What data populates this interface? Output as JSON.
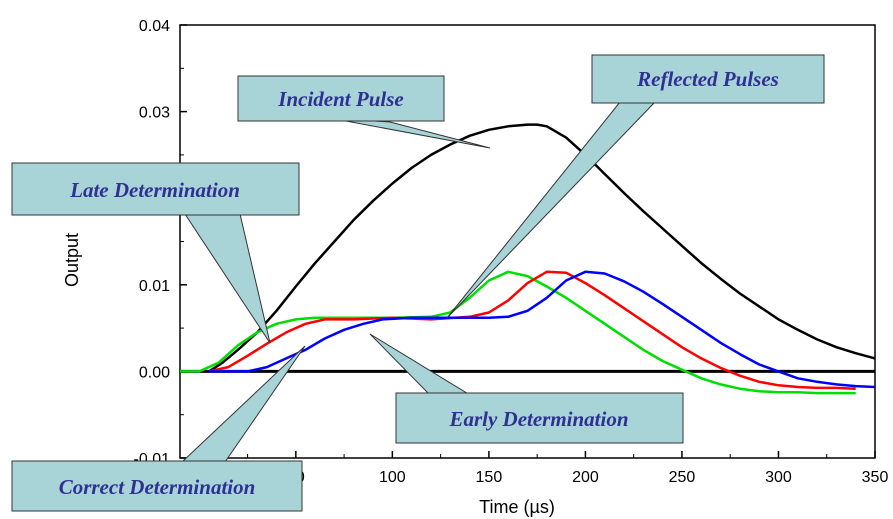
{
  "chart_data": {
    "type": "line",
    "xlabel": "Time (µs)",
    "ylabel": "Output",
    "xlim": [
      -10,
      350
    ],
    "ylim": [
      -0.01,
      0.04
    ],
    "x_tick_labels": [
      "50",
      "100",
      "150",
      "200",
      "250",
      "300",
      "350"
    ],
    "y_tick_labels": [
      "-0.01",
      "0.00",
      "0.01",
      "0.03",
      "0.04"
    ],
    "series": [
      {
        "color": "#000000",
        "points": [
          [
            5,
            0.0
          ],
          [
            12,
            0.001
          ],
          [
            20,
            0.0025
          ],
          [
            30,
            0.0045
          ],
          [
            40,
            0.007
          ],
          [
            50,
            0.0098
          ],
          [
            60,
            0.0125
          ],
          [
            70,
            0.015
          ],
          [
            80,
            0.0175
          ],
          [
            90,
            0.0197
          ],
          [
            100,
            0.0217
          ],
          [
            110,
            0.0235
          ],
          [
            120,
            0.025
          ],
          [
            130,
            0.0262
          ],
          [
            140,
            0.0272
          ],
          [
            150,
            0.0279
          ],
          [
            160,
            0.0283
          ],
          [
            170,
            0.0285
          ],
          [
            175,
            0.0285
          ],
          [
            180,
            0.0283
          ],
          [
            190,
            0.027
          ],
          [
            200,
            0.025
          ],
          [
            210,
            0.0228
          ],
          [
            220,
            0.0206
          ],
          [
            230,
            0.0185
          ],
          [
            240,
            0.0165
          ],
          [
            250,
            0.0145
          ],
          [
            260,
            0.0125
          ],
          [
            270,
            0.0107
          ],
          [
            280,
            0.009
          ],
          [
            290,
            0.0075
          ],
          [
            300,
            0.006
          ],
          [
            310,
            0.0048
          ],
          [
            320,
            0.0037
          ],
          [
            330,
            0.0028
          ],
          [
            340,
            0.0021
          ],
          [
            350,
            0.0015
          ]
        ]
      },
      {
        "color": "#00dd00",
        "points": [
          [
            -10,
            0.0
          ],
          [
            0,
            0.0
          ],
          [
            10,
            0.001
          ],
          [
            20,
            0.003
          ],
          [
            30,
            0.0045
          ],
          [
            40,
            0.0055
          ],
          [
            50,
            0.006
          ],
          [
            60,
            0.0062
          ],
          [
            80,
            0.0062
          ],
          [
            100,
            0.0062
          ],
          [
            120,
            0.0063
          ],
          [
            130,
            0.0068
          ],
          [
            140,
            0.0085
          ],
          [
            150,
            0.0105
          ],
          [
            160,
            0.0115
          ],
          [
            170,
            0.011
          ],
          [
            180,
            0.0098
          ],
          [
            190,
            0.0085
          ],
          [
            200,
            0.007
          ],
          [
            210,
            0.0055
          ],
          [
            220,
            0.004
          ],
          [
            230,
            0.0025
          ],
          [
            240,
            0.0012
          ],
          [
            250,
            0.0002
          ],
          [
            260,
            -0.0008
          ],
          [
            270,
            -0.0015
          ],
          [
            280,
            -0.002
          ],
          [
            290,
            -0.0023
          ],
          [
            300,
            -0.0024
          ],
          [
            310,
            -0.0024
          ],
          [
            320,
            -0.0025
          ],
          [
            330,
            -0.0025
          ],
          [
            340,
            -0.0025
          ]
        ]
      },
      {
        "color": "#ff0000",
        "points": [
          [
            5,
            0.0
          ],
          [
            15,
            0.0005
          ],
          [
            25,
            0.0018
          ],
          [
            35,
            0.0032
          ],
          [
            45,
            0.0045
          ],
          [
            55,
            0.0055
          ],
          [
            65,
            0.006
          ],
          [
            80,
            0.006
          ],
          [
            100,
            0.0062
          ],
          [
            120,
            0.006
          ],
          [
            140,
            0.0063
          ],
          [
            150,
            0.0068
          ],
          [
            160,
            0.0082
          ],
          [
            170,
            0.0102
          ],
          [
            180,
            0.0115
          ],
          [
            190,
            0.0114
          ],
          [
            200,
            0.0102
          ],
          [
            210,
            0.0088
          ],
          [
            220,
            0.0073
          ],
          [
            230,
            0.0058
          ],
          [
            240,
            0.0043
          ],
          [
            250,
            0.0028
          ],
          [
            260,
            0.0015
          ],
          [
            270,
            0.0004
          ],
          [
            280,
            -0.0005
          ],
          [
            290,
            -0.0012
          ],
          [
            300,
            -0.0016
          ],
          [
            310,
            -0.0018
          ],
          [
            320,
            -0.0019
          ],
          [
            330,
            -0.0019
          ],
          [
            340,
            -0.002
          ]
        ]
      },
      {
        "color": "#0000ff",
        "points": [
          [
            5,
            0.0
          ],
          [
            15,
            0.0
          ],
          [
            25,
            0.0
          ],
          [
            35,
            0.0005
          ],
          [
            45,
            0.0015
          ],
          [
            55,
            0.0025
          ],
          [
            65,
            0.0038
          ],
          [
            75,
            0.0048
          ],
          [
            85,
            0.0055
          ],
          [
            95,
            0.006
          ],
          [
            110,
            0.0062
          ],
          [
            130,
            0.0062
          ],
          [
            150,
            0.0062
          ],
          [
            160,
            0.0063
          ],
          [
            170,
            0.007
          ],
          [
            180,
            0.0085
          ],
          [
            190,
            0.0105
          ],
          [
            200,
            0.0115
          ],
          [
            210,
            0.0113
          ],
          [
            220,
            0.0104
          ],
          [
            230,
            0.0092
          ],
          [
            240,
            0.0078
          ],
          [
            250,
            0.0063
          ],
          [
            260,
            0.0048
          ],
          [
            270,
            0.0033
          ],
          [
            280,
            0.002
          ],
          [
            290,
            0.0008
          ],
          [
            300,
            0.0
          ],
          [
            310,
            -0.0008
          ],
          [
            320,
            -0.0012
          ],
          [
            330,
            -0.0015
          ],
          [
            340,
            -0.0017
          ],
          [
            350,
            -0.0018
          ]
        ]
      }
    ],
    "annotations": [
      {
        "text": "Incident Pulse",
        "target": [
          103,
          0.0262
        ]
      },
      {
        "text": "Reflected Pulses",
        "target": [
          100,
          0.0062
        ]
      },
      {
        "text": "Late Determination",
        "target": [
          2,
          0.0028
        ]
      },
      {
        "text": "Correct Determination",
        "target": [
          18,
          0.003
        ]
      },
      {
        "text": "Early Determination",
        "target": [
          55,
          0.0038
        ]
      }
    ]
  }
}
